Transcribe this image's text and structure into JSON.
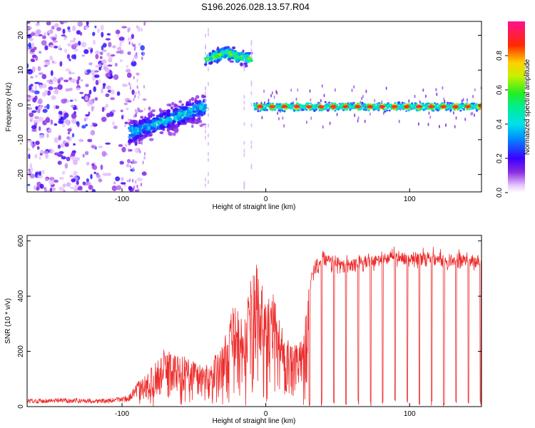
{
  "title": "S196.2026.028.13.57.R04",
  "colors": {
    "snr_line": "#ee2a2a",
    "axis": "#000000",
    "background": "#ffffff"
  },
  "chart_data": [
    {
      "type": "heatmap",
      "name": "spectrogram",
      "xlabel": "Height of straight line (km)",
      "ylabel": "Frequency (Hz)",
      "xlim": [
        -166,
        150
      ],
      "ylim": [
        -25,
        24
      ],
      "xticks": [
        -100,
        0,
        100
      ],
      "xtick_labels": [
        "-100",
        "0",
        "100"
      ],
      "yticks": [
        -20,
        -10,
        0,
        10,
        20
      ],
      "ytick_labels": [
        "-20",
        "-10",
        "0",
        "10",
        "20"
      ],
      "colorbar": {
        "label": "Normalized spectral amplitude",
        "range": [
          0,
          1
        ],
        "ticks": [
          0.0,
          0.2,
          0.4,
          0.6,
          0.8
        ],
        "tick_labels": [
          "0.0",
          "0.2",
          "0.4",
          "0.6",
          "0.8"
        ],
        "colormap": "rainbow (white-purple-blue-cyan-green-yellow-red-magenta)"
      },
      "features": [
        {
          "region": "noise",
          "x_range": [
            -166,
            -85
          ],
          "freq_range": [
            -25,
            24
          ],
          "amplitude": "low scattered (0.05-0.35)"
        },
        {
          "region": "chirp",
          "x_range": [
            -95,
            -42
          ],
          "freq_center_start": -8,
          "freq_center_end": -1,
          "amplitude": "0.2-0.45"
        },
        {
          "region": "elevated band",
          "x_range": [
            -42,
            -10
          ],
          "freq_center": 14,
          "amplitude": "0.3-0.6"
        },
        {
          "region": "steady tone",
          "x_range": [
            -8,
            150
          ],
          "freq_center": -0.5,
          "amplitude": "0.3-0.95, periodic red peaks"
        }
      ]
    },
    {
      "type": "line",
      "name": "snr",
      "xlabel": "Height of straight line (km)",
      "ylabel": "SNR (10 * v/v)",
      "xlim": [
        -166,
        150
      ],
      "ylim": [
        0,
        620
      ],
      "xticks": [
        -100,
        0,
        100
      ],
      "xtick_labels": [
        "-100",
        "0",
        "100"
      ],
      "yticks": [
        0,
        200,
        400,
        600
      ],
      "ytick_labels": [
        "0",
        "200",
        "400",
        "600"
      ],
      "series": [
        {
          "name": "SNR",
          "color": "#ee2a2a",
          "x": [
            -166,
            -140,
            -110,
            -95,
            -88,
            -80,
            -70,
            -60,
            -50,
            -40,
            -30,
            -22,
            -15,
            -10,
            -6,
            0,
            5,
            10,
            18,
            26,
            32,
            40,
            50,
            60,
            70,
            80,
            90,
            100,
            110,
            120,
            130,
            140,
            150
          ],
          "y": [
            20,
            22,
            20,
            30,
            70,
            110,
            170,
            150,
            140,
            120,
            180,
            300,
            240,
            380,
            420,
            300,
            330,
            260,
            170,
            200,
            480,
            540,
            510,
            515,
            525,
            535,
            540,
            535,
            545,
            535,
            525,
            530,
            520
          ],
          "note": "envelope estimate; beyond x = 30 the signal drops to near 0 about every 8.5 km"
        }
      ]
    }
  ]
}
